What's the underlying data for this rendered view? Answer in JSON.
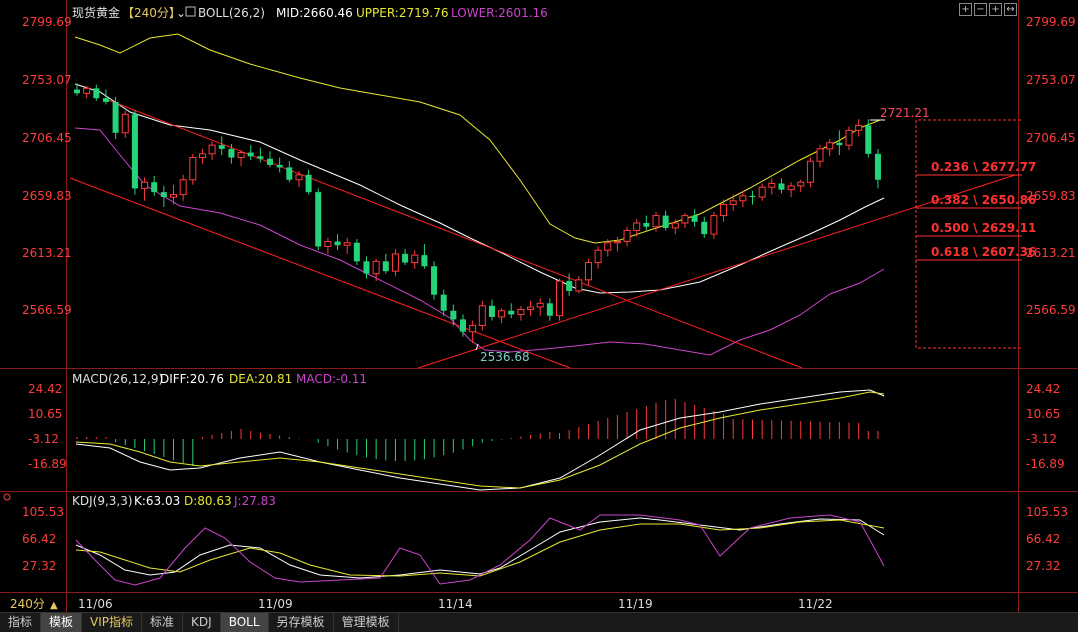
{
  "header": {
    "title": "现货黄金",
    "period": "【240分】",
    "indicator": "BOLL(26,2)",
    "mid": "MID:2660.46",
    "upper": "UPPER:2719.76",
    "lower": "LOWER:2601.16"
  },
  "macd_header": {
    "name": "MACD(26,12,9)",
    "diff": "DIFF:20.76",
    "dea": "DEA:20.81",
    "macd": "MACD:-0.11"
  },
  "kdj_header": {
    "name": "KDJ(9,3,3)",
    "k": "K:63.03",
    "d": "D:80.63",
    "j": "J:27.83"
  },
  "price_axis": [
    "2799.69",
    "2753.07",
    "2706.45",
    "2659.83",
    "2613.21",
    "2566.59"
  ],
  "macd_axis": [
    "24.42",
    "10.65",
    "-3.12",
    "-16.89"
  ],
  "kdj_axis": [
    "105.53",
    "66.42",
    "27.32"
  ],
  "annotations": {
    "high": "2721.21",
    "low": "2536.68",
    "fib": [
      "0.236 \\ 2677.77",
      "0.382 \\ 2650.86",
      "0.500 \\ 2629.11",
      "0.618 \\ 2607.36"
    ]
  },
  "x_labels": [
    "11/06",
    "11/09",
    "11/14",
    "11/19",
    "11/22"
  ],
  "period_label": "240分",
  "bottom_tabs": [
    "指标",
    "模板",
    "VIP指标",
    "标准",
    "KDJ",
    "BOLL",
    "另存模板",
    "管理模板"
  ],
  "colors": {
    "up": "#ff3b3b",
    "down": "#25d47a",
    "mid": "#ffffff",
    "upper": "#e8e830",
    "lower": "#cc44cc",
    "trend": "#ff2020",
    "axis": "#ff3c3c"
  },
  "chart_data": {
    "type": "candlestick",
    "ylim": [
      2536.68,
      2799.69
    ],
    "candles": [
      [
        2745,
        2750,
        2740,
        2742
      ],
      [
        2742,
        2748,
        2738,
        2746
      ],
      [
        2746,
        2749,
        2736,
        2738
      ],
      [
        2738,
        2745,
        2733,
        2735
      ],
      [
        2735,
        2739,
        2705,
        2710
      ],
      [
        2710,
        2728,
        2706,
        2725
      ],
      [
        2725,
        2728,
        2660,
        2665
      ],
      [
        2665,
        2674,
        2655,
        2670
      ],
      [
        2670,
        2675,
        2659,
        2662
      ],
      [
        2662,
        2667,
        2650,
        2658
      ],
      [
        2658,
        2668,
        2652,
        2660
      ],
      [
        2660,
        2676,
        2655,
        2672
      ],
      [
        2672,
        2693,
        2668,
        2690
      ],
      [
        2690,
        2697,
        2685,
        2693
      ],
      [
        2693,
        2703,
        2688,
        2700
      ],
      [
        2700,
        2707,
        2692,
        2697
      ],
      [
        2697,
        2701,
        2685,
        2690
      ],
      [
        2690,
        2696,
        2683,
        2694
      ],
      [
        2694,
        2700,
        2688,
        2691
      ],
      [
        2691,
        2698,
        2686,
        2689
      ],
      [
        2689,
        2695,
        2682,
        2684
      ],
      [
        2684,
        2690,
        2678,
        2682
      ],
      [
        2682,
        2687,
        2670,
        2672
      ],
      [
        2672,
        2679,
        2666,
        2676
      ],
      [
        2676,
        2680,
        2660,
        2662
      ],
      [
        2662,
        2665,
        2615,
        2618
      ],
      [
        2618,
        2625,
        2612,
        2622
      ],
      [
        2622,
        2628,
        2615,
        2619
      ],
      [
        2619,
        2625,
        2612,
        2621
      ],
      [
        2621,
        2624,
        2603,
        2606
      ],
      [
        2606,
        2610,
        2592,
        2596
      ],
      [
        2596,
        2608,
        2590,
        2606
      ],
      [
        2606,
        2612,
        2596,
        2598
      ],
      [
        2598,
        2616,
        2594,
        2612
      ],
      [
        2612,
        2616,
        2603,
        2605
      ],
      [
        2605,
        2615,
        2600,
        2611
      ],
      [
        2611,
        2620,
        2600,
        2602
      ],
      [
        2602,
        2606,
        2575,
        2579
      ],
      [
        2579,
        2583,
        2562,
        2566
      ],
      [
        2566,
        2571,
        2554,
        2559
      ],
      [
        2559,
        2563,
        2545,
        2549
      ],
      [
        2549,
        2558,
        2540,
        2554
      ],
      [
        2554,
        2574,
        2550,
        2570
      ],
      [
        2570,
        2575,
        2558,
        2561
      ],
      [
        2561,
        2568,
        2556,
        2566
      ],
      [
        2566,
        2572,
        2560,
        2563
      ],
      [
        2563,
        2570,
        2558,
        2567
      ],
      [
        2567,
        2574,
        2562,
        2569
      ],
      [
        2569,
        2576,
        2562,
        2572
      ],
      [
        2572,
        2576,
        2558,
        2562
      ],
      [
        2562,
        2592,
        2558,
        2590
      ],
      [
        2590,
        2596,
        2578,
        2582
      ],
      [
        2582,
        2594,
        2580,
        2591
      ],
      [
        2591,
        2608,
        2587,
        2605
      ],
      [
        2605,
        2618,
        2600,
        2615
      ],
      [
        2615,
        2624,
        2610,
        2621
      ],
      [
        2621,
        2626,
        2614,
        2622
      ],
      [
        2622,
        2634,
        2618,
        2631
      ],
      [
        2631,
        2640,
        2626,
        2637
      ],
      [
        2637,
        2643,
        2631,
        2634
      ],
      [
        2634,
        2646,
        2630,
        2643
      ],
      [
        2643,
        2647,
        2631,
        2633
      ],
      [
        2633,
        2640,
        2628,
        2637
      ],
      [
        2637,
        2645,
        2633,
        2643
      ],
      [
        2643,
        2648,
        2634,
        2638
      ],
      [
        2638,
        2642,
        2625,
        2628
      ],
      [
        2628,
        2646,
        2624,
        2643
      ],
      [
        2643,
        2656,
        2638,
        2652
      ],
      [
        2652,
        2660,
        2647,
        2655
      ],
      [
        2655,
        2663,
        2650,
        2659
      ],
      [
        2659,
        2663,
        2652,
        2658
      ],
      [
        2658,
        2669,
        2655,
        2666
      ],
      [
        2666,
        2673,
        2660,
        2669
      ],
      [
        2669,
        2673,
        2661,
        2664
      ],
      [
        2664,
        2670,
        2658,
        2667
      ],
      [
        2667,
        2672,
        2662,
        2670
      ],
      [
        2670,
        2690,
        2666,
        2687
      ],
      [
        2687,
        2700,
        2682,
        2697
      ],
      [
        2697,
        2705,
        2691,
        2702
      ],
      [
        2702,
        2712,
        2692,
        2700
      ],
      [
        2700,
        2715,
        2696,
        2712
      ],
      [
        2712,
        2721,
        2707,
        2716
      ],
      [
        2716,
        2721,
        2690,
        2693
      ],
      [
        2693,
        2697,
        2665,
        2672
      ]
    ]
  }
}
